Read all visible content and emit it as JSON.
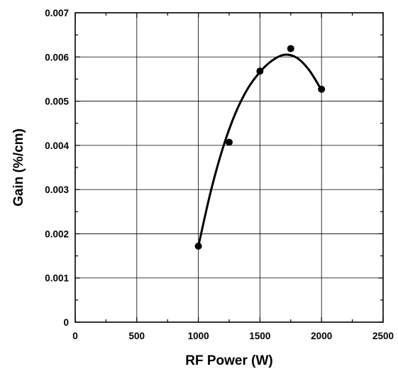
{
  "chart_data": {
    "type": "scatter",
    "title": "",
    "xlabel": "RF Power (W)",
    "ylabel": "Gain (%/cm)",
    "xlim": [
      0,
      2500
    ],
    "ylim": [
      0,
      0.007
    ],
    "xticks": [
      0,
      500,
      1000,
      1500,
      2000,
      2500
    ],
    "yticks": [
      0,
      0.001,
      0.002,
      0.003,
      0.004,
      0.005,
      0.006,
      0.007
    ],
    "xtick_labels": [
      "0",
      "500",
      "1000",
      "1500",
      "2000",
      "2500"
    ],
    "ytick_labels": [
      "0",
      "0.001",
      "0.002",
      "0.003",
      "0.004",
      "0.005",
      "0.006",
      "0.007"
    ],
    "grid": true,
    "series": [
      {
        "points": [
          {
            "x": 1000,
            "y": 0.00172
          },
          {
            "x": 1250,
            "y": 0.00407
          },
          {
            "x": 1500,
            "y": 0.00568
          },
          {
            "x": 1750,
            "y": 0.00619
          },
          {
            "x": 2000,
            "y": 0.00527
          }
        ],
        "fit": {
          "type": "smooth curve",
          "points": [
            {
              "x": 1000,
              "y": 0.00172
            },
            {
              "x": 1100,
              "y": 0.00295
            },
            {
              "x": 1200,
              "y": 0.00395
            },
            {
              "x": 1300,
              "y": 0.00472
            },
            {
              "x": 1400,
              "y": 0.00528
            },
            {
              "x": 1500,
              "y": 0.00566
            },
            {
              "x": 1600,
              "y": 0.00592
            },
            {
              "x": 1700,
              "y": 0.00605
            },
            {
              "x": 1800,
              "y": 0.00598
            },
            {
              "x": 1900,
              "y": 0.0057
            },
            {
              "x": 2000,
              "y": 0.00525
            }
          ]
        },
        "color": "#000000"
      }
    ]
  }
}
